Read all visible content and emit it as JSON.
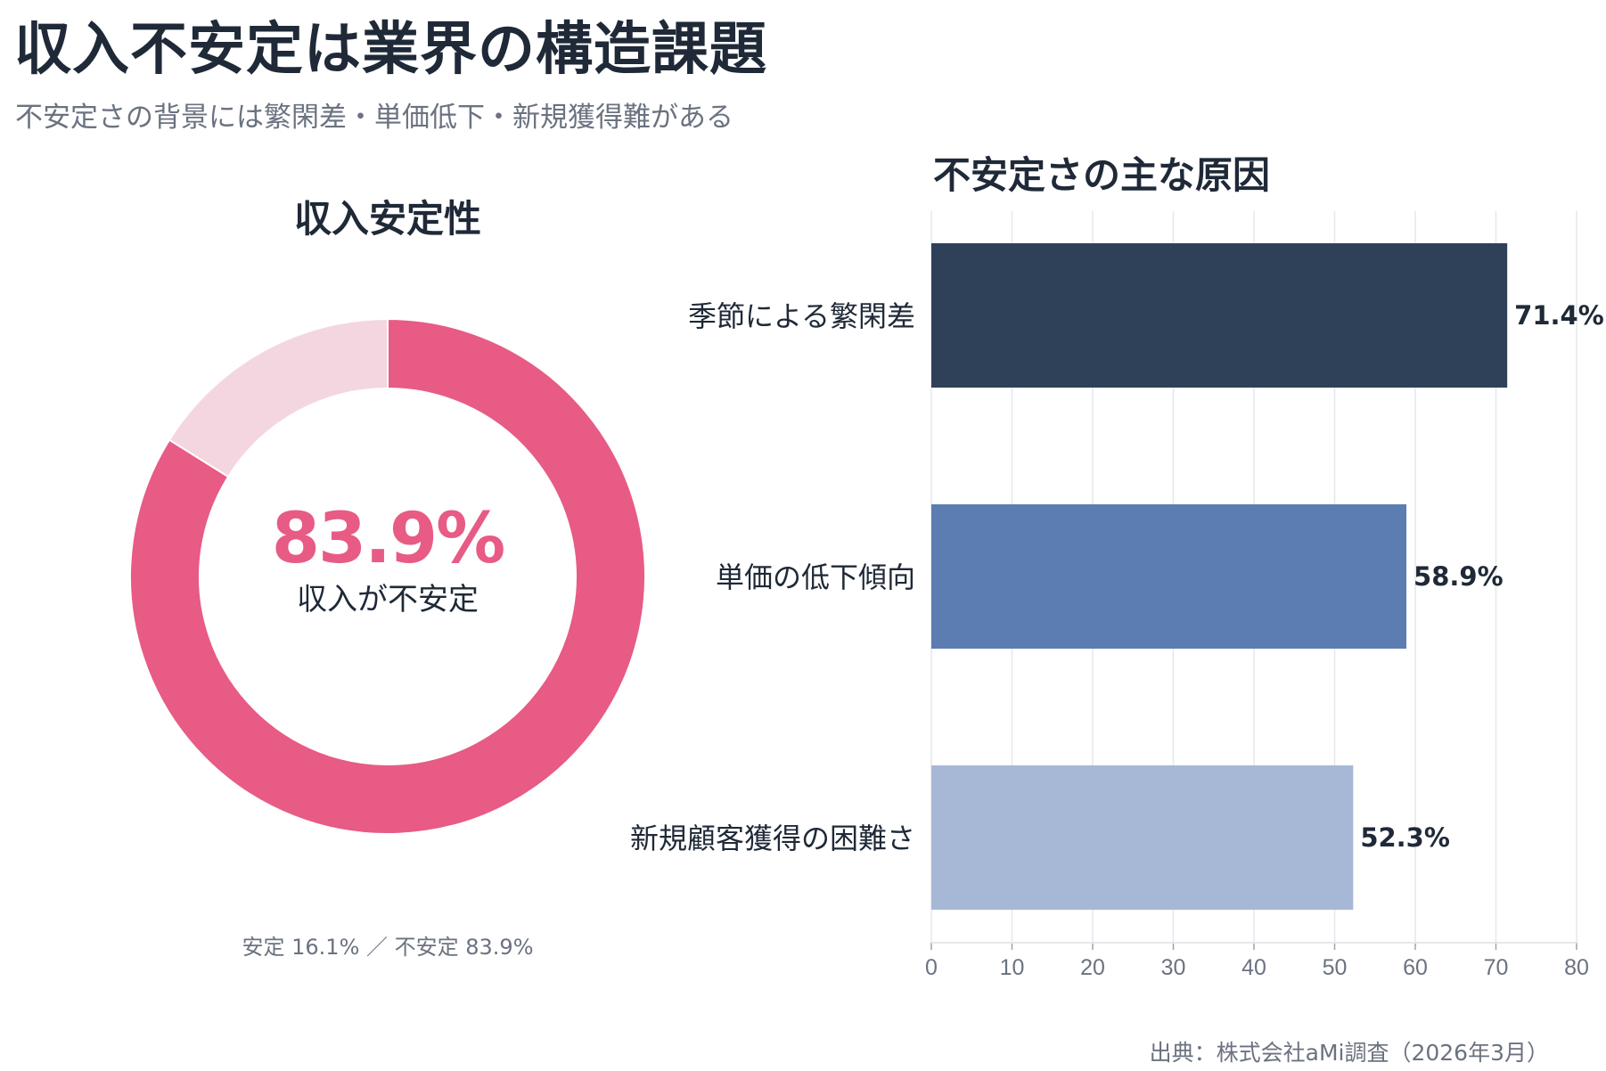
{
  "header": {
    "title": "収入不安定は業界の構造課題",
    "subtitle": "不安定さの背景には繁閑差・単価低下・新規獲得難がある"
  },
  "source": "出典：株式会社aMi調査（2026年3月）",
  "colors": {
    "unstable": "#e75b85",
    "stable": "#f4d6e1",
    "bars": [
      "#2f4159",
      "#5b7db1",
      "#a7b8d6"
    ],
    "grid": "#e5e7eb",
    "tick_text": "#6b7280"
  },
  "chart_data": [
    {
      "type": "pie",
      "donut": true,
      "title": "収入安定性",
      "center_value": "83.9%",
      "center_label": "収入が不安定",
      "caption": "安定 16.1% ／ 不安定 83.9%",
      "slices": [
        {
          "label": "不安定",
          "value": 83.9
        },
        {
          "label": "安定",
          "value": 16.1
        }
      ]
    },
    {
      "type": "bar",
      "orientation": "horizontal",
      "title": "不安定さの主な原因",
      "categories": [
        "季節による繁閑差",
        "単価の低下傾向",
        "新規顧客獲得の困難さ"
      ],
      "values": [
        71.4,
        58.9,
        52.3
      ],
      "data_labels": [
        "71.4%",
        "58.9%",
        "52.3%"
      ],
      "xlim": [
        0,
        80
      ],
      "xticks": [
        "0",
        "10",
        "20",
        "30",
        "40",
        "50",
        "60",
        "70",
        "80"
      ],
      "grid": true,
      "xlabel": "",
      "ylabel": ""
    }
  ]
}
